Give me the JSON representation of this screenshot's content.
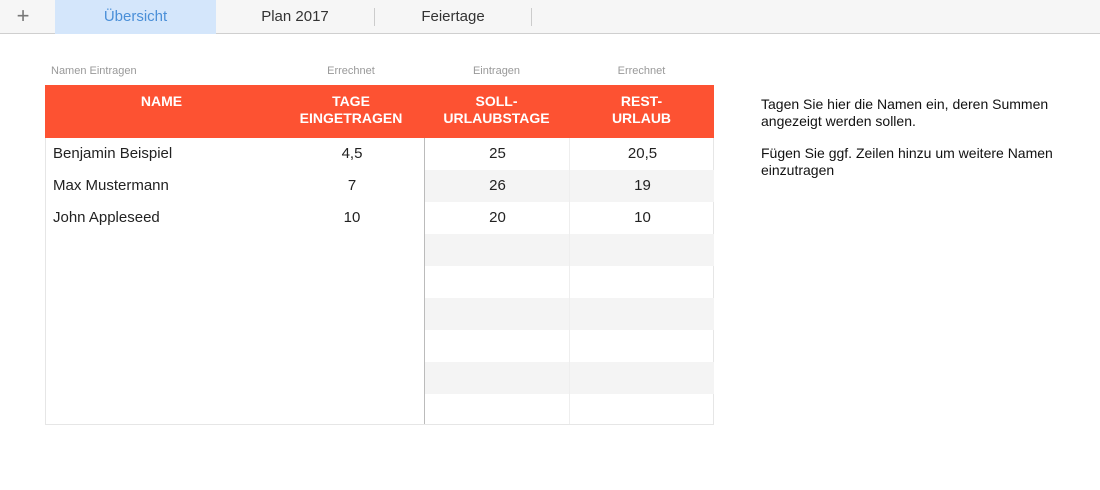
{
  "tabs": [
    {
      "label": "Übersicht",
      "active": true
    },
    {
      "label": "Plan 2017"
    },
    {
      "label": "Feiertage"
    }
  ],
  "add_sheet_icon": "plus-icon",
  "column_labels": [
    "Namen Eintragen",
    "Errechnet",
    "Eintragen",
    "Errechnet"
  ],
  "headers": [
    "NAME",
    "TAGE\nEINGETRAGEN",
    "SOLL-\nURLAUBSTAGE",
    "REST-\nURLAUB"
  ],
  "header_color": "#fd5232",
  "rows": [
    {
      "name": "Benjamin Beispiel",
      "tage": "4,5",
      "soll": "25",
      "rest": "20,5"
    },
    {
      "name": "Max Mustermann",
      "tage": "7",
      "soll": "26",
      "rest": "19"
    },
    {
      "name": "John Appleseed",
      "tage": "10",
      "soll": "20",
      "rest": "10"
    }
  ],
  "notes": [
    "Tagen Sie hier die Namen ein, deren Summen angezeigt werden sollen.",
    "Fügen Sie ggf. Zeilen hinzu um weitere Namen einzutragen"
  ]
}
